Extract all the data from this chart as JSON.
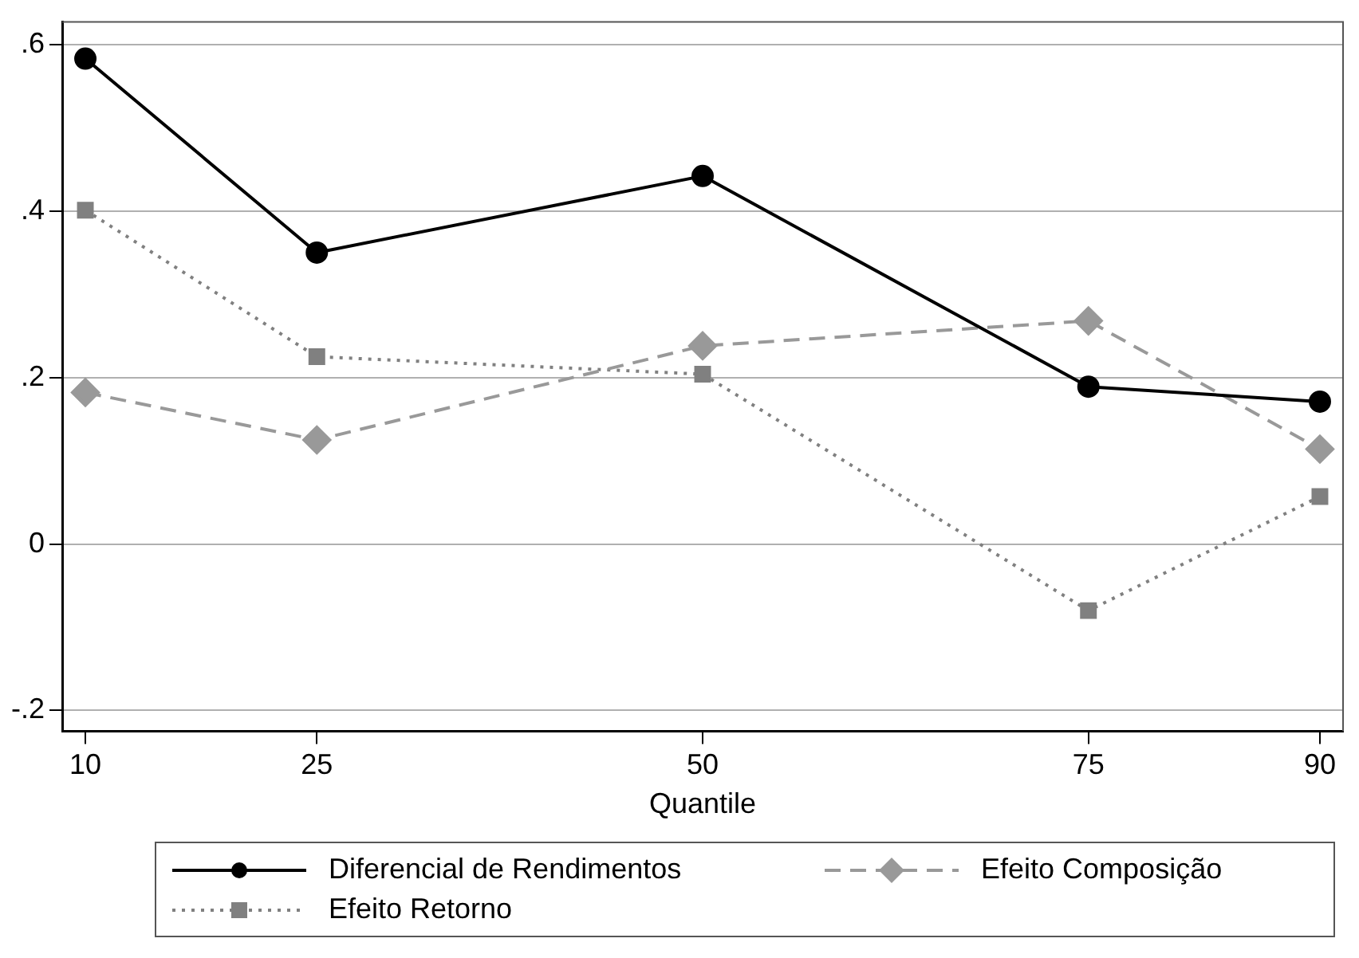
{
  "chart_data": {
    "type": "line",
    "xlabel": "Quantile",
    "x": [
      10,
      25,
      50,
      75,
      90
    ],
    "xlim": [
      8.5,
      91.5
    ],
    "xticks": [
      10,
      25,
      50,
      75,
      90
    ],
    "ylim": [
      -0.225,
      0.627
    ],
    "yticks": [
      {
        "value": -0.2,
        "label": "-.2"
      },
      0,
      {
        "value": 0.2,
        "label": ".2"
      },
      {
        "value": 0.4,
        "label": ".4"
      },
      {
        "value": 0.6,
        "label": ".6"
      }
    ],
    "grid": "y",
    "legend": "bottom",
    "series": [
      {
        "name": "Diferencial de Rendimentos",
        "color": "#000000",
        "marker": "circle",
        "line_style": "solid",
        "values": [
          0.583,
          0.35,
          0.442,
          0.189,
          0.171
        ]
      },
      {
        "name": "Efeito Composição",
        "color": "#999999",
        "marker": "diamond",
        "line_style": "dashed",
        "values": [
          0.182,
          0.125,
          0.238,
          0.268,
          0.114
        ]
      },
      {
        "name": "Efeito Retorno",
        "color": "#808080",
        "marker": "square",
        "line_style": "dotted",
        "values": [
          0.401,
          0.225,
          0.204,
          -0.08,
          0.057
        ]
      }
    ]
  }
}
